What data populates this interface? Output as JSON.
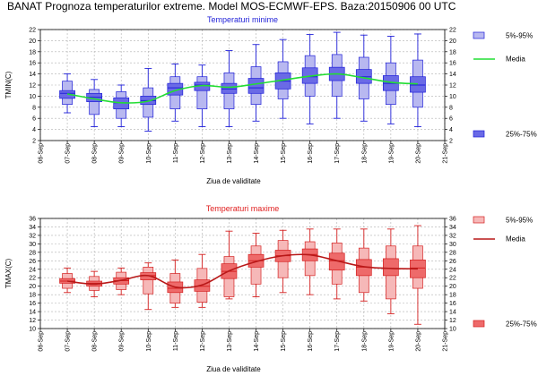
{
  "title": "BANAT  Prognoza temperaturilor extreme.  Model MOS-ECMWF-EPS. Baza:20150906 00 UTC",
  "chart_data": [
    {
      "type": "boxplot",
      "title": "Temperaturi minime",
      "title_color": "#1f1fd8",
      "xlabel": "Ziua de validitate",
      "ylabel": "TMIN(C)",
      "ylim": [
        2,
        22
      ],
      "ytick_step": 2,
      "grid": true,
      "legend_placement": "right",
      "categories": [
        "06-Sep",
        "07-Sep",
        "08-Sep",
        "09-Sep",
        "10-Sep",
        "11-Sep",
        "12-Sep",
        "13-Sep",
        "14-Sep",
        "15-Sep",
        "16-Sep",
        "17-Sep",
        "18-Sep",
        "19-Sep",
        "20-Sep",
        "21-Sep"
      ],
      "colors": {
        "outer": "#b8b8f0",
        "inner": "#6a6ae6",
        "edge": "#1f1fd8",
        "mean": "#22dd33"
      },
      "legend": {
        "outer": "5%-95%",
        "mean": "Media",
        "inner": "25%-75%"
      },
      "boxes": [
        {
          "x": "07-Sep",
          "min": 7.0,
          "p5": 8.5,
          "p25": 9.6,
          "median": 10.5,
          "p75": 11.0,
          "p95": 12.7,
          "max": 14.0
        },
        {
          "x": "08-Sep",
          "min": 4.5,
          "p5": 6.7,
          "p25": 9.0,
          "median": 9.8,
          "p75": 10.5,
          "p95": 11.2,
          "max": 13.0
        },
        {
          "x": "09-Sep",
          "min": 4.5,
          "p5": 6.0,
          "p25": 7.7,
          "median": 8.8,
          "p75": 9.7,
          "p95": 10.8,
          "max": 12.0
        },
        {
          "x": "10-Sep",
          "min": 3.7,
          "p5": 6.2,
          "p25": 8.5,
          "median": 9.2,
          "p75": 10.0,
          "p95": 11.5,
          "max": 15.0
        },
        {
          "x": "11-Sep",
          "min": 5.5,
          "p5": 7.7,
          "p25": 10.2,
          "median": 11.5,
          "p75": 12.3,
          "p95": 13.5,
          "max": 15.8
        },
        {
          "x": "12-Sep",
          "min": 4.5,
          "p5": 7.7,
          "p25": 11.0,
          "median": 12.0,
          "p75": 12.5,
          "p95": 13.5,
          "max": 15.6
        },
        {
          "x": "13-Sep",
          "min": 4.5,
          "p5": 7.7,
          "p25": 10.5,
          "median": 11.3,
          "p75": 12.3,
          "p95": 14.2,
          "max": 18.2
        },
        {
          "x": "14-Sep",
          "min": 5.5,
          "p5": 8.5,
          "p25": 10.5,
          "median": 11.5,
          "p75": 13.2,
          "p95": 15.3,
          "max": 19.3
        },
        {
          "x": "15-Sep",
          "min": 6.0,
          "p5": 9.5,
          "p25": 11.3,
          "median": 12.7,
          "p75": 14.2,
          "p95": 16.2,
          "max": 20.2
        },
        {
          "x": "16-Sep",
          "min": 5.0,
          "p5": 10.0,
          "p25": 12.3,
          "median": 13.5,
          "p75": 15.1,
          "p95": 17.3,
          "max": 21.1
        },
        {
          "x": "17-Sep",
          "min": 6.0,
          "p5": 10.0,
          "p25": 12.8,
          "median": 14.0,
          "p75": 15.2,
          "p95": 17.5,
          "max": 21.5
        },
        {
          "x": "18-Sep",
          "min": 5.5,
          "p5": 9.5,
          "p25": 12.3,
          "median": 13.5,
          "p75": 14.8,
          "p95": 17.0,
          "max": 21.0
        },
        {
          "x": "19-Sep",
          "min": 5.0,
          "p5": 8.5,
          "p25": 11.0,
          "median": 12.3,
          "p75": 13.7,
          "p95": 16.0,
          "max": 20.8
        },
        {
          "x": "20-Sep",
          "min": 4.5,
          "p5": 8.0,
          "p25": 10.7,
          "median": 12.0,
          "p75": 13.5,
          "p95": 16.5,
          "max": 21.2
        }
      ],
      "mean": {
        "x": [
          "07-Sep",
          "08-Sep",
          "09-Sep",
          "10-Sep",
          "11-Sep",
          "12-Sep",
          "13-Sep",
          "14-Sep",
          "15-Sep",
          "16-Sep",
          "17-Sep",
          "18-Sep",
          "19-Sep",
          "20-Sep"
        ],
        "values": [
          10.4,
          9.5,
          8.8,
          9.1,
          11.0,
          11.9,
          11.6,
          12.2,
          12.9,
          13.6,
          14.0,
          13.3,
          12.5,
          12.2
        ]
      }
    },
    {
      "type": "boxplot",
      "title": "Temperaturi maxime",
      "title_color": "#e02020",
      "xlabel": "Ziua de validitate",
      "ylabel": "TMAX(C)",
      "ylim": [
        10,
        36
      ],
      "ytick_step": 2,
      "grid": true,
      "legend_placement": "right",
      "categories": [
        "06-Sep",
        "07-Sep",
        "08-Sep",
        "09-Sep",
        "10-Sep",
        "11-Sep",
        "12-Sep",
        "13-Sep",
        "14-Sep",
        "15-Sep",
        "16-Sep",
        "17-Sep",
        "18-Sep",
        "19-Sep",
        "20-Sep",
        "21-Sep"
      ],
      "colors": {
        "outer": "#f6b8b8",
        "inner": "#ee6a6a",
        "edge": "#d42020",
        "mean": "#b81818"
      },
      "legend": {
        "outer": "5%-95%",
        "mean": "Media",
        "inner": "25%-75%"
      },
      "boxes": [
        {
          "x": "07-Sep",
          "min": 18.5,
          "p5": 19.5,
          "p25": 20.7,
          "median": 21.2,
          "p75": 21.8,
          "p95": 23.0,
          "max": 24.3
        },
        {
          "x": "08-Sep",
          "min": 17.5,
          "p5": 19.0,
          "p25": 20.0,
          "median": 20.7,
          "p75": 21.2,
          "p95": 22.3,
          "max": 23.5
        },
        {
          "x": "09-Sep",
          "min": 18.0,
          "p5": 19.2,
          "p25": 20.5,
          "median": 21.3,
          "p75": 22.0,
          "p95": 23.3,
          "max": 24.3
        },
        {
          "x": "10-Sep",
          "min": 14.5,
          "p5": 18.2,
          "p25": 21.5,
          "median": 22.5,
          "p75": 23.2,
          "p95": 24.5,
          "max": 25.5
        },
        {
          "x": "11-Sep",
          "min": 15.0,
          "p5": 16.0,
          "p25": 18.5,
          "median": 19.5,
          "p75": 21.0,
          "p95": 23.0,
          "max": 26.2
        },
        {
          "x": "12-Sep",
          "min": 15.0,
          "p5": 16.2,
          "p25": 18.8,
          "median": 20.0,
          "p75": 21.5,
          "p95": 24.2,
          "max": 27.5
        },
        {
          "x": "13-Sep",
          "min": 17.0,
          "p5": 17.5,
          "p25": 21.8,
          "median": 23.5,
          "p75": 25.3,
          "p95": 27.0,
          "max": 33.0
        },
        {
          "x": "14-Sep",
          "min": 17.5,
          "p5": 20.5,
          "p25": 24.5,
          "median": 26.0,
          "p75": 27.5,
          "p95": 29.5,
          "max": 32.5
        },
        {
          "x": "15-Sep",
          "min": 18.5,
          "p5": 22.0,
          "p25": 25.8,
          "median": 27.2,
          "p75": 28.5,
          "p95": 30.8,
          "max": 33.2
        },
        {
          "x": "16-Sep",
          "min": 18.0,
          "p5": 22.5,
          "p25": 26.0,
          "median": 27.5,
          "p75": 28.8,
          "p95": 30.5,
          "max": 33.5
        },
        {
          "x": "17-Sep",
          "min": 17.0,
          "p5": 20.5,
          "p25": 23.8,
          "median": 26.0,
          "p75": 27.8,
          "p95": 30.2,
          "max": 33.5
        },
        {
          "x": "18-Sep",
          "min": 16.5,
          "p5": 18.5,
          "p25": 22.5,
          "median": 24.5,
          "p75": 26.3,
          "p95": 29.0,
          "max": 33.5
        },
        {
          "x": "19-Sep",
          "min": 13.5,
          "p5": 17.0,
          "p25": 22.5,
          "median": 24.2,
          "p75": 26.5,
          "p95": 29.5,
          "max": 33.5
        },
        {
          "x": "20-Sep",
          "min": 11.0,
          "p5": 19.5,
          "p25": 22.0,
          "median": 24.3,
          "p75": 26.2,
          "p95": 29.5,
          "max": 34.3
        }
      ],
      "mean": {
        "x": [
          "07-Sep",
          "08-Sep",
          "09-Sep",
          "10-Sep",
          "11-Sep",
          "12-Sep",
          "13-Sep",
          "14-Sep",
          "15-Sep",
          "16-Sep",
          "17-Sep",
          "18-Sep",
          "19-Sep",
          "20-Sep"
        ],
        "values": [
          21.2,
          20.5,
          21.4,
          22.5,
          19.8,
          20.3,
          23.6,
          25.8,
          27.2,
          27.4,
          26.0,
          24.6,
          24.2,
          24.1
        ]
      }
    }
  ]
}
